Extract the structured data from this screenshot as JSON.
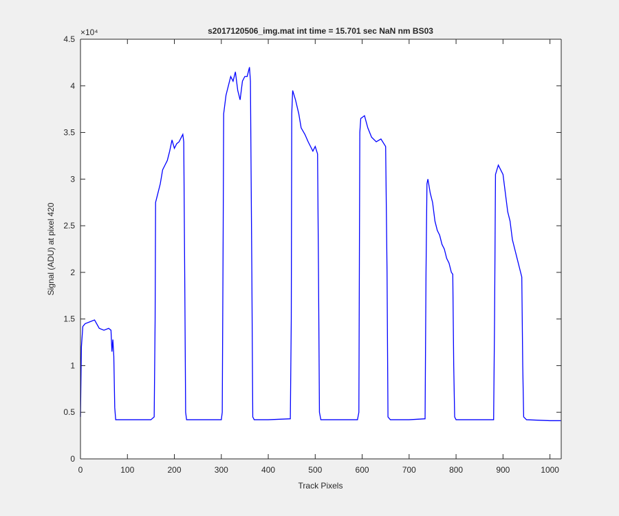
{
  "chart_data": {
    "type": "line",
    "title": "s2017120506_img.mat int time = 15.701 sec  NaN nm BS03",
    "x_label": "Track Pixels",
    "y_label": "Signal (ADU) at pixel 420",
    "y_exponent_label": "×10⁴",
    "xlim": [
      0,
      1024
    ],
    "ylim": [
      0,
      4.5
    ],
    "xticks": [
      0,
      100,
      200,
      300,
      400,
      500,
      600,
      700,
      800,
      900,
      1000
    ],
    "yticks": [
      0,
      0.5,
      1,
      1.5,
      2,
      2.5,
      3,
      3.5,
      4,
      4.5
    ],
    "grid": false,
    "box": true,
    "series": [
      {
        "color": "#0000ff",
        "x": [
          0,
          2,
          5,
          10,
          20,
          30,
          40,
          50,
          60,
          65,
          67,
          69,
          71,
          73,
          75,
          100,
          150,
          157,
          159,
          160,
          165,
          170,
          175,
          180,
          185,
          190,
          195,
          200,
          205,
          210,
          215,
          218,
          220,
          222,
          224,
          226,
          250,
          300,
          302,
          304,
          305,
          310,
          315,
          320,
          325,
          330,
          335,
          340,
          345,
          350,
          355,
          360,
          362,
          365,
          367,
          370,
          400,
          447,
          449,
          450,
          452,
          458,
          465,
          470,
          478,
          485,
          490,
          495,
          500,
          505,
          507,
          509,
          512,
          550,
          590,
          593,
          595,
          597,
          605,
          612,
          620,
          630,
          640,
          650,
          653,
          655,
          660,
          700,
          734,
          736,
          738,
          740,
          745,
          750,
          755,
          760,
          765,
          770,
          775,
          780,
          785,
          790,
          793,
          795,
          797,
          800,
          850,
          880,
          882,
          884,
          890,
          895,
          900,
          905,
          910,
          915,
          920,
          925,
          930,
          935,
          940,
          942,
          944,
          950,
          1000,
          1023
        ],
        "values": [
          0.45,
          1.2,
          1.42,
          1.45,
          1.47,
          1.49,
          1.4,
          1.38,
          1.4,
          1.38,
          1.15,
          1.28,
          1.1,
          0.55,
          0.42,
          0.42,
          0.42,
          0.45,
          1.5,
          2.75,
          2.85,
          2.95,
          3.1,
          3.15,
          3.2,
          3.3,
          3.42,
          3.33,
          3.38,
          3.4,
          3.45,
          3.48,
          3.4,
          2.0,
          0.5,
          0.42,
          0.42,
          0.42,
          0.5,
          2.5,
          3.7,
          3.9,
          4.0,
          4.1,
          4.05,
          4.15,
          3.95,
          3.85,
          4.05,
          4.1,
          4.1,
          4.2,
          4.05,
          2.0,
          0.45,
          0.42,
          0.42,
          0.43,
          1.5,
          3.7,
          3.95,
          3.85,
          3.7,
          3.55,
          3.48,
          3.4,
          3.35,
          3.3,
          3.35,
          3.27,
          2.0,
          0.5,
          0.42,
          0.42,
          0.42,
          0.5,
          3.5,
          3.65,
          3.68,
          3.55,
          3.45,
          3.4,
          3.43,
          3.35,
          2.0,
          0.45,
          0.42,
          0.42,
          0.43,
          2.0,
          2.95,
          3.0,
          2.85,
          2.75,
          2.55,
          2.45,
          2.4,
          2.3,
          2.25,
          2.15,
          2.1,
          2.0,
          1.98,
          1.0,
          0.45,
          0.42,
          0.42,
          0.42,
          1.5,
          3.05,
          3.15,
          3.1,
          3.05,
          2.85,
          2.65,
          2.55,
          2.35,
          2.25,
          2.15,
          2.05,
          1.95,
          1.0,
          0.45,
          0.42,
          0.41,
          0.41
        ]
      }
    ]
  }
}
